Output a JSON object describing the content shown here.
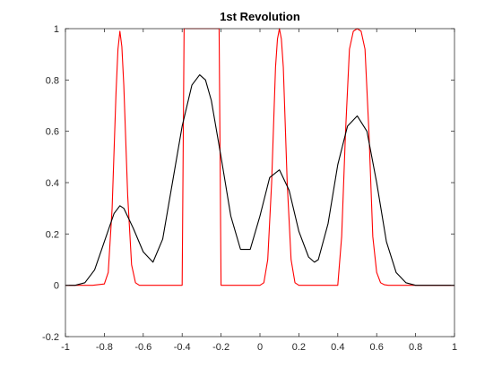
{
  "chart_data": {
    "type": "line",
    "title": "1st Revolution",
    "xlabel": "",
    "ylabel": "",
    "xlim": [
      -1,
      1
    ],
    "ylim": [
      -0.2,
      1
    ],
    "x_ticks": [
      -1,
      -0.8,
      -0.6,
      -0.4,
      -0.2,
      0,
      0.2,
      0.4,
      0.6,
      0.8,
      1
    ],
    "x_tick_labels": [
      "-1",
      "-0.8",
      "-0.6",
      "-0.4",
      "-0.2",
      "0",
      "0.2",
      "0.4",
      "0.6",
      "0.8",
      "1"
    ],
    "y_ticks": [
      -0.2,
      0,
      0.2,
      0.4,
      0.6,
      0.8,
      1
    ],
    "y_tick_labels": [
      "-0.2",
      "0",
      "0.2",
      "0.4",
      "0.6",
      "0.8",
      "1"
    ],
    "grid": false,
    "legend": "none",
    "series": [
      {
        "color": "#ff0000",
        "x": [
          -1,
          -0.86,
          -0.8,
          -0.78,
          -0.76,
          -0.74,
          -0.73,
          -0.72,
          -0.71,
          -0.7,
          -0.68,
          -0.66,
          -0.64,
          -0.62,
          -0.56,
          -0.4,
          -0.395,
          -0.39,
          -0.21,
          -0.205,
          -0.2,
          0.0,
          0.02,
          0.04,
          0.06,
          0.08,
          0.09,
          0.1,
          0.11,
          0.12,
          0.14,
          0.16,
          0.18,
          0.2,
          0.4,
          0.42,
          0.44,
          0.46,
          0.48,
          0.5,
          0.52,
          0.54,
          0.56,
          0.58,
          0.6,
          0.62,
          0.64,
          0.66,
          1.0
        ],
        "y": [
          0,
          0,
          0.005,
          0.05,
          0.3,
          0.75,
          0.92,
          0.99,
          0.93,
          0.78,
          0.35,
          0.08,
          0.01,
          0,
          0,
          0,
          0.5,
          1.0,
          1.0,
          0.5,
          0,
          0,
          0.01,
          0.1,
          0.4,
          0.85,
          0.96,
          1.0,
          0.96,
          0.85,
          0.4,
          0.1,
          0.01,
          0,
          0,
          0.19,
          0.6,
          0.92,
          0.99,
          1.0,
          0.99,
          0.92,
          0.6,
          0.19,
          0.05,
          0.01,
          0.002,
          0,
          0
        ]
      },
      {
        "color": "#000000",
        "x": [
          -1.0,
          -0.95,
          -0.9,
          -0.85,
          -0.8,
          -0.75,
          -0.72,
          -0.7,
          -0.65,
          -0.6,
          -0.55,
          -0.5,
          -0.45,
          -0.4,
          -0.35,
          -0.31,
          -0.28,
          -0.25,
          -0.2,
          -0.15,
          -0.1,
          -0.05,
          0.0,
          0.05,
          0.1,
          0.15,
          0.2,
          0.25,
          0.28,
          0.3,
          0.35,
          0.4,
          0.45,
          0.5,
          0.55,
          0.6,
          0.65,
          0.7,
          0.75,
          0.8,
          0.85,
          0.9,
          1.0
        ],
        "y": [
          0.0,
          0.0,
          0.01,
          0.06,
          0.17,
          0.28,
          0.31,
          0.3,
          0.22,
          0.13,
          0.09,
          0.18,
          0.4,
          0.62,
          0.78,
          0.82,
          0.8,
          0.72,
          0.5,
          0.27,
          0.14,
          0.14,
          0.27,
          0.42,
          0.45,
          0.37,
          0.21,
          0.11,
          0.09,
          0.1,
          0.24,
          0.47,
          0.62,
          0.66,
          0.6,
          0.4,
          0.17,
          0.05,
          0.01,
          0.0,
          0.0,
          0.0,
          0.0
        ]
      }
    ]
  }
}
